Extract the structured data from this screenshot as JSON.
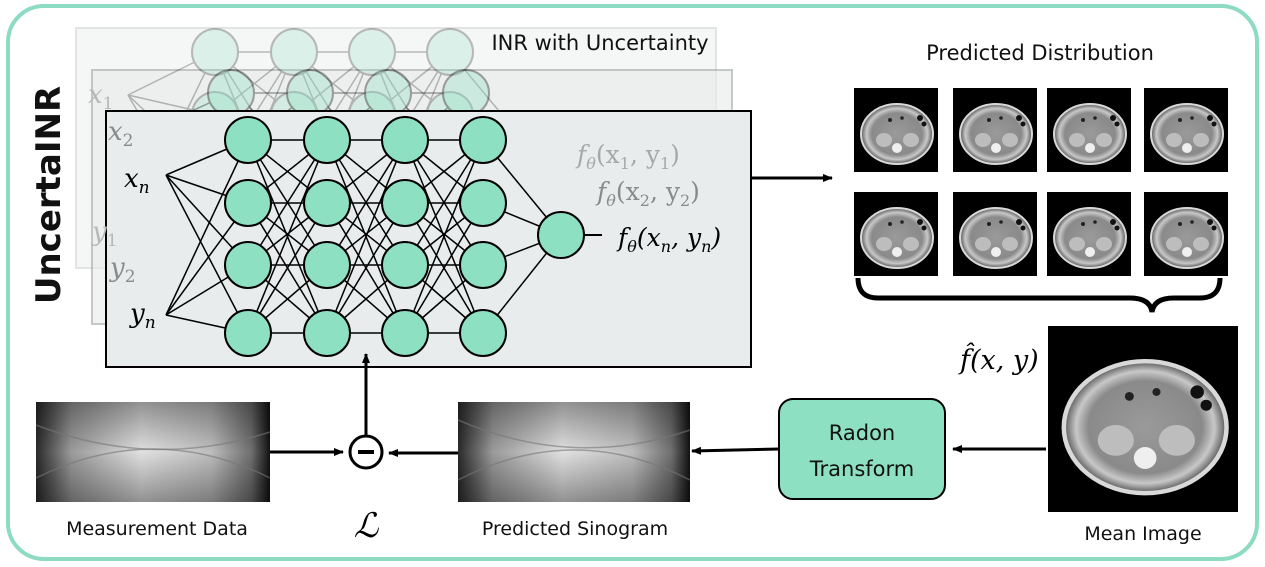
{
  "side_title": "UncertaINR",
  "inr_title": "INR with Uncertainty",
  "predicted_distribution_title": "Predicted Distribution",
  "mean_image_label": "Mean Image",
  "mean_image_formula": "f̂(x, y)",
  "measurement_label": "Measurement Data",
  "sinogram_label": "Predicted Sinogram",
  "loss_symbol": "ℒ",
  "radon_line1": "Radon",
  "radon_line2": "Transform",
  "inputs": {
    "x1": "x",
    "x1_sub": "1",
    "x2": "x",
    "x2_sub": "2",
    "xn": "x",
    "xn_sub": "n",
    "y1": "y",
    "y1_sub": "1",
    "y2": "y",
    "y2_sub": "2",
    "yn": "y",
    "yn_sub": "n"
  },
  "outputs": {
    "o1": "f",
    "o1_sub": "θ",
    "o1_args": "(x",
    "o1_a_sub": "1",
    "o1_mid": ", y",
    "o1_b_sub": "1",
    "o1_close": ")",
    "o2": "f",
    "o2_sub": "θ",
    "o2_args": "(x",
    "o2_a_sub": "2",
    "o2_mid": ", y",
    "o2_b_sub": "2",
    "o2_close": ")",
    "on": "f",
    "on_sub": "θ",
    "on_args": "(x",
    "on_a_sub": "n",
    "on_mid": ", y",
    "on_b_sub": "n",
    "on_close": ")"
  },
  "colors": {
    "node_fill": "#8ee0c3",
    "frame_border": "#8ddbc3",
    "panel_fill": "#e9ecec",
    "radon_fill": "#8ee0c3"
  }
}
